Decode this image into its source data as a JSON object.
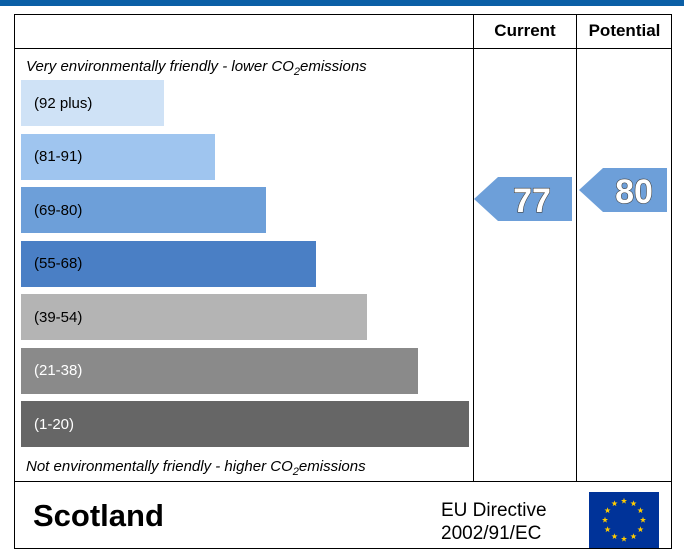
{
  "chart_data": {
    "type": "bar",
    "title": "",
    "columns": [
      "Current",
      "Potential"
    ],
    "top_note": {
      "prefix": "Very environmentally friendly - lower CO",
      "sub": "2",
      "suffix": "emissions"
    },
    "bottom_note": {
      "prefix": "Not environmentally friendly - higher CO",
      "sub": "2",
      "suffix": "emissions"
    },
    "bands": [
      {
        "range": "(92 plus)",
        "min": 92,
        "max": 100,
        "color": "#cfe2f6",
        "text_color": "#000000"
      },
      {
        "range": "(81-91)",
        "min": 81,
        "max": 91,
        "color": "#9fc5ef",
        "text_color": "#000000"
      },
      {
        "range": "(69-80)",
        "min": 69,
        "max": 80,
        "color": "#6d9fd9",
        "text_color": "#000000"
      },
      {
        "range": "(55-68)",
        "min": 55,
        "max": 68,
        "color": "#4a7fc5",
        "text_color": "#000000"
      },
      {
        "range": "(39-54)",
        "min": 39,
        "max": 54,
        "color": "#b4b4b4",
        "text_color": "#000000"
      },
      {
        "range": "(21-38)",
        "min": 21,
        "max": 38,
        "color": "#8a8a8a",
        "text_color": "#ffffff"
      },
      {
        "range": "(1-20)",
        "min": 1,
        "max": 20,
        "color": "#666666",
        "text_color": "#ffffff"
      }
    ],
    "ratings": [
      {
        "column": "Current",
        "value": 77,
        "color": "#6d9fd9"
      },
      {
        "column": "Potential",
        "value": 80,
        "color": "#6d9fd9"
      }
    ]
  },
  "footer": {
    "region": "Scotland",
    "directive_line1": "EU Directive",
    "directive_line2": "2002/91/EC",
    "flag_icon": "eu-flag-icon",
    "flag_color": "#003399",
    "star_color": "#ffcc00"
  }
}
